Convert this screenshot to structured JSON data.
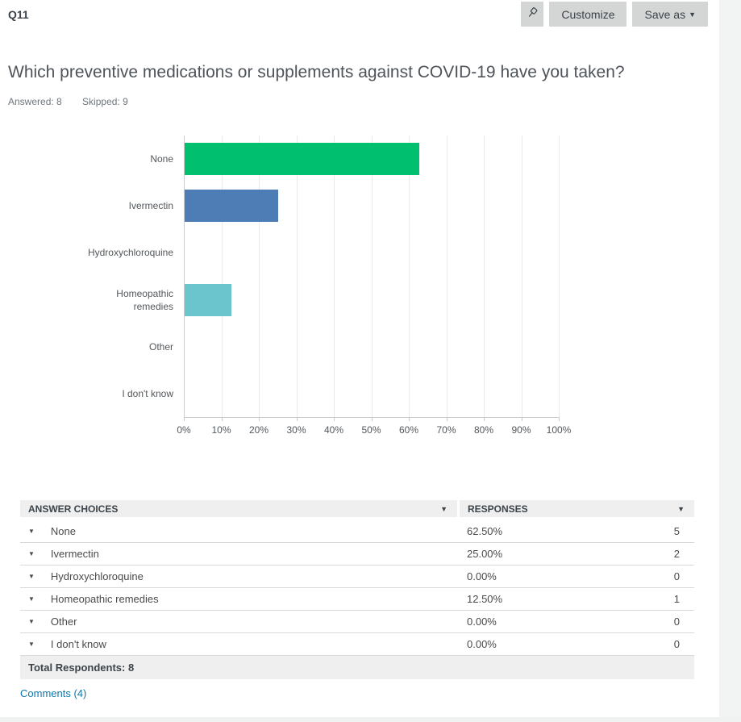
{
  "colors": {
    "bar_green": "#00c06f",
    "bar_blue": "#4e7cb5",
    "bar_teal": "#6ac6cc",
    "link_blue": "#0f76a9",
    "button_gray": "#d4d6d6"
  },
  "header": {
    "question_number": "Q11",
    "customize_label": "Customize",
    "save_as_label": "Save as",
    "caret_glyph": "▼"
  },
  "question": {
    "title": "Which preventive medications or supplements against COVID-19 have you taken?",
    "answered": "Answered: 8",
    "skipped": "Skipped: 9"
  },
  "chart_data": {
    "type": "bar",
    "orientation": "horizontal",
    "title": "",
    "xlabel": "",
    "ylabel": "",
    "xlim": [
      0,
      100
    ],
    "grid": true,
    "categories": [
      "None",
      "Ivermectin",
      "Hydroxychloroquine",
      "Homeopathic remedies",
      "Other",
      "I don't know"
    ],
    "values": [
      62.5,
      25,
      0,
      12.5,
      0,
      0
    ],
    "bar_colors": [
      "#00c06f",
      "#4e7cb5",
      null,
      "#6ac6cc",
      null,
      null
    ],
    "x_ticks": [
      "0%",
      "10%",
      "20%",
      "30%",
      "40%",
      "50%",
      "60%",
      "70%",
      "80%",
      "90%",
      "100%"
    ]
  },
  "table": {
    "columns": [
      "ANSWER CHOICES",
      "RESPONSES"
    ],
    "sort_caret": "▼",
    "row_caret": "▼",
    "rows": [
      {
        "label": "None",
        "percent": "62.50%",
        "count": "5"
      },
      {
        "label": "Ivermectin",
        "percent": "25.00%",
        "count": "2"
      },
      {
        "label": "Hydroxychloroquine",
        "percent": "0.00%",
        "count": "0"
      },
      {
        "label": "Homeopathic remedies",
        "percent": "12.50%",
        "count": "1"
      },
      {
        "label": "Other",
        "percent": "0.00%",
        "count": "0"
      },
      {
        "label": "I don't know",
        "percent": "0.00%",
        "count": "0"
      }
    ],
    "total_label": "Total Respondents: 8"
  },
  "footer": {
    "comments_label": "Comments (4)"
  }
}
